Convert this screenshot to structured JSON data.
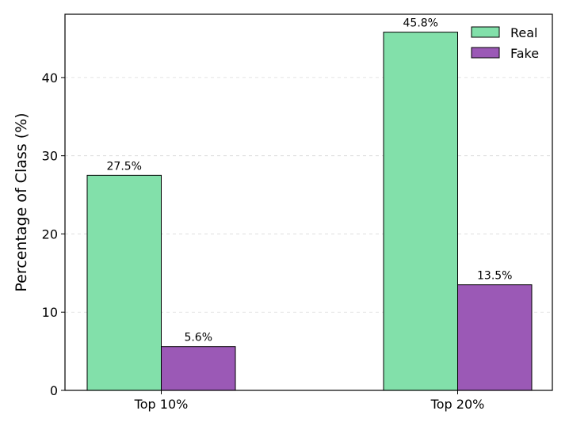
{
  "chart_data": {
    "type": "bar",
    "title": "",
    "xlabel": "",
    "ylabel": "Percentage of Class (%)",
    "categories": [
      "Top 10%",
      "Top 20%"
    ],
    "series": [
      {
        "name": "Real",
        "color": "#82e0aa",
        "values": [
          27.5,
          45.8
        ]
      },
      {
        "name": "Fake",
        "color": "#9b59b6",
        "values": [
          5.6,
          13.5
        ]
      }
    ],
    "data_labels": [
      [
        "27.5%",
        "45.8%"
      ],
      [
        "5.6%",
        "13.5%"
      ]
    ],
    "ylim": [
      0,
      48.09
    ],
    "yticks": [
      0,
      10,
      20,
      30,
      40
    ],
    "grid": "y-dashed",
    "legend_position": "top-right"
  }
}
